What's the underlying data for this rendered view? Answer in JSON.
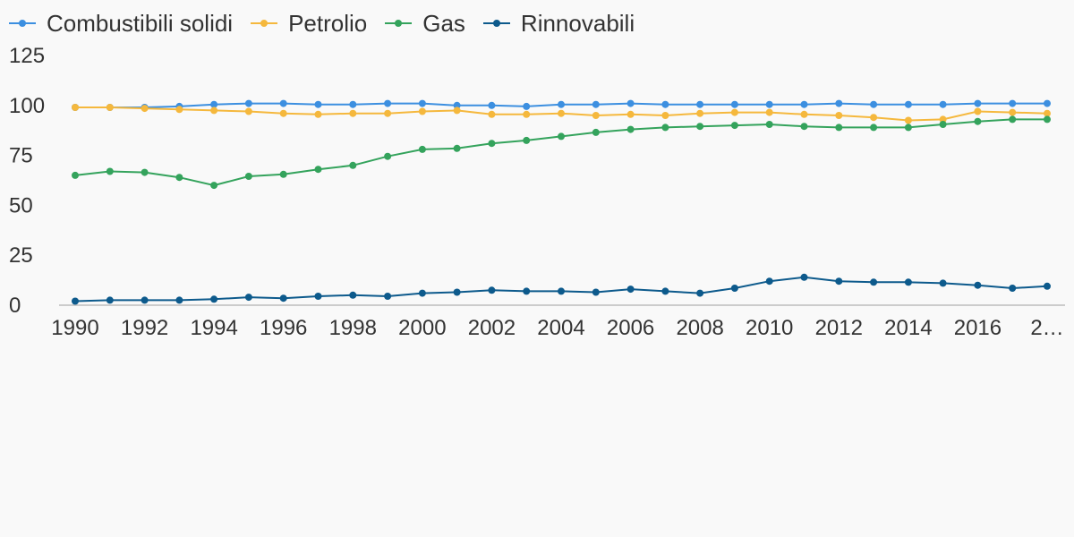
{
  "chart_data": {
    "type": "line",
    "title": "",
    "xlabel": "",
    "ylabel": "",
    "x": [
      "1990",
      "1991",
      "1992",
      "1993",
      "1994",
      "1995",
      "1996",
      "1997",
      "1998",
      "1999",
      "2000",
      "2001",
      "2002",
      "2003",
      "2004",
      "2005",
      "2006",
      "2007",
      "2008",
      "2009",
      "2010",
      "2011",
      "2012",
      "2013",
      "2014",
      "2015",
      "2016",
      "2017",
      "2018"
    ],
    "x_tick_labels": [
      "1990",
      "1992",
      "1994",
      "1996",
      "1998",
      "2000",
      "2002",
      "2004",
      "2006",
      "2008",
      "2010",
      "2012",
      "2014",
      "2016",
      "2…"
    ],
    "ylim": [
      0,
      125
    ],
    "y_ticks": [
      "0",
      "25",
      "50",
      "75",
      "100",
      "125"
    ],
    "grid": false,
    "legend_position": "top-left",
    "series": [
      {
        "name": "Combustibili solidi",
        "color": "#3c8fe0",
        "values": [
          99,
          99,
          99,
          99.5,
          100.5,
          101,
          101,
          100.5,
          100.5,
          101,
          101,
          100,
          100,
          99.5,
          100.5,
          100.5,
          101,
          100.5,
          100.5,
          100.5,
          100.5,
          100.5,
          101,
          100.5,
          100.5,
          100.5,
          101,
          101,
          101
        ]
      },
      {
        "name": "Petrolio",
        "color": "#f5b83d",
        "values": [
          99,
          99,
          98.5,
          98,
          97.5,
          97,
          96,
          95.5,
          96,
          96,
          97,
          97.5,
          95.5,
          95.5,
          96,
          95,
          95.5,
          95,
          96,
          96.5,
          96.5,
          95.5,
          95,
          94,
          92.5,
          93,
          97,
          96.5,
          96
        ]
      },
      {
        "name": "Gas",
        "color": "#34a35c",
        "values": [
          65,
          67,
          66.5,
          64,
          60,
          64.5,
          65.5,
          68,
          70,
          74.5,
          78,
          78.5,
          81,
          82.5,
          84.5,
          86.5,
          88,
          89,
          89.5,
          90,
          90.5,
          89.5,
          89,
          89,
          89,
          90.5,
          92,
          93,
          93
        ]
      },
      {
        "name": "Rinnovabili",
        "color": "#0d5a8c",
        "values": [
          2,
          2.5,
          2.5,
          2.5,
          3,
          4,
          3.5,
          4.5,
          5,
          4.5,
          6,
          6.5,
          7.5,
          7,
          7,
          6.5,
          8,
          7,
          6,
          8.5,
          12,
          14,
          12,
          11.5,
          11.5,
          11,
          10,
          8.5,
          9.5
        ]
      }
    ]
  }
}
